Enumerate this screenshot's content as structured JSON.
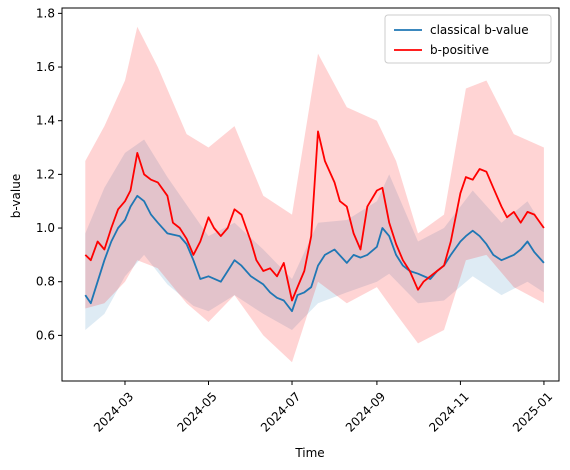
{
  "chart_data": {
    "type": "line",
    "title": "",
    "xlabel": "Time",
    "ylabel": "b-value",
    "xlim": [
      "2024-01-15",
      "2025-01-12"
    ],
    "ylim": [
      0.43,
      1.82
    ],
    "x_ticks": [
      "2024-03-01",
      "2024-05-01",
      "2024-07-01",
      "2024-09-01",
      "2024-11-01",
      "2025-01-01"
    ],
    "x_tick_labels": [
      "2024-03",
      "2024-05",
      "2024-07",
      "2024-09",
      "2024-11",
      "2025-01"
    ],
    "y_ticks": [
      0.6,
      0.8,
      1.0,
      1.2,
      1.4,
      1.6,
      1.8
    ],
    "y_tick_labels": [
      "0.6",
      "0.8",
      "1.0",
      "1.2",
      "1.4",
      "1.6",
      "1.8"
    ],
    "x_tick_rotation_deg": 45,
    "grid": false,
    "legend": {
      "position": "top-right"
    },
    "series": [
      {
        "name": "classical b-value",
        "color": "#1f77b4",
        "band_color": "#1f77b4",
        "points": [
          [
            "2024-02-01",
            0.75
          ],
          [
            "2024-02-05",
            0.72
          ],
          [
            "2024-02-10",
            0.8
          ],
          [
            "2024-02-15",
            0.88
          ],
          [
            "2024-02-20",
            0.95
          ],
          [
            "2024-02-25",
            1.0
          ],
          [
            "2024-03-01",
            1.03
          ],
          [
            "2024-03-05",
            1.08
          ],
          [
            "2024-03-10",
            1.12
          ],
          [
            "2024-03-15",
            1.1
          ],
          [
            "2024-03-20",
            1.05
          ],
          [
            "2024-03-25",
            1.02
          ],
          [
            "2024-04-01",
            0.98
          ],
          [
            "2024-04-10",
            0.97
          ],
          [
            "2024-04-15",
            0.94
          ],
          [
            "2024-04-20",
            0.88
          ],
          [
            "2024-04-25",
            0.81
          ],
          [
            "2024-05-01",
            0.82
          ],
          [
            "2024-05-10",
            0.8
          ],
          [
            "2024-05-15",
            0.84
          ],
          [
            "2024-05-20",
            0.88
          ],
          [
            "2024-05-25",
            0.86
          ],
          [
            "2024-06-01",
            0.82
          ],
          [
            "2024-06-10",
            0.79
          ],
          [
            "2024-06-15",
            0.76
          ],
          [
            "2024-06-20",
            0.74
          ],
          [
            "2024-06-25",
            0.73
          ],
          [
            "2024-07-01",
            0.69
          ],
          [
            "2024-07-05",
            0.75
          ],
          [
            "2024-07-10",
            0.76
          ],
          [
            "2024-07-15",
            0.78
          ],
          [
            "2024-07-20",
            0.86
          ],
          [
            "2024-07-25",
            0.9
          ],
          [
            "2024-08-01",
            0.92
          ],
          [
            "2024-08-10",
            0.87
          ],
          [
            "2024-08-15",
            0.9
          ],
          [
            "2024-08-20",
            0.89
          ],
          [
            "2024-08-25",
            0.9
          ],
          [
            "2024-09-01",
            0.93
          ],
          [
            "2024-09-05",
            1.0
          ],
          [
            "2024-09-10",
            0.97
          ],
          [
            "2024-09-15",
            0.9
          ],
          [
            "2024-09-20",
            0.86
          ],
          [
            "2024-09-25",
            0.84
          ],
          [
            "2024-10-01",
            0.83
          ],
          [
            "2024-10-10",
            0.81
          ],
          [
            "2024-10-15",
            0.84
          ],
          [
            "2024-10-20",
            0.86
          ],
          [
            "2024-10-25",
            0.9
          ],
          [
            "2024-11-01",
            0.95
          ],
          [
            "2024-11-05",
            0.97
          ],
          [
            "2024-11-10",
            0.99
          ],
          [
            "2024-11-15",
            0.97
          ],
          [
            "2024-11-20",
            0.94
          ],
          [
            "2024-11-25",
            0.9
          ],
          [
            "2024-12-01",
            0.88
          ],
          [
            "2024-12-10",
            0.9
          ],
          [
            "2024-12-15",
            0.92
          ],
          [
            "2024-12-20",
            0.95
          ],
          [
            "2024-12-25",
            0.91
          ],
          [
            "2025-01-01",
            0.87
          ]
        ],
        "band": [
          [
            "2024-02-01",
            0.62,
            0.98
          ],
          [
            "2024-02-15",
            0.68,
            1.15
          ],
          [
            "2024-03-01",
            0.82,
            1.28
          ],
          [
            "2024-03-15",
            0.9,
            1.33
          ],
          [
            "2024-04-01",
            0.79,
            1.19
          ],
          [
            "2024-04-20",
            0.71,
            1.05
          ],
          [
            "2024-05-01",
            0.69,
            0.97
          ],
          [
            "2024-05-20",
            0.75,
            1.02
          ],
          [
            "2024-06-10",
            0.68,
            0.92
          ],
          [
            "2024-07-01",
            0.62,
            0.81
          ],
          [
            "2024-07-20",
            0.72,
            1.02
          ],
          [
            "2024-08-10",
            0.76,
            1.03
          ],
          [
            "2024-09-01",
            0.8,
            1.1
          ],
          [
            "2024-09-10",
            0.83,
            1.2
          ],
          [
            "2024-10-01",
            0.72,
            0.95
          ],
          [
            "2024-10-20",
            0.73,
            1.0
          ],
          [
            "2024-11-10",
            0.82,
            1.14
          ],
          [
            "2024-12-01",
            0.75,
            1.02
          ],
          [
            "2024-12-20",
            0.8,
            1.1
          ],
          [
            "2025-01-01",
            0.76,
            1.0
          ]
        ]
      },
      {
        "name": "b-positive",
        "color": "#ff0000",
        "band_color": "#ff0000",
        "points": [
          [
            "2024-02-01",
            0.9
          ],
          [
            "2024-02-05",
            0.88
          ],
          [
            "2024-02-10",
            0.95
          ],
          [
            "2024-02-15",
            0.92
          ],
          [
            "2024-02-20",
            1.0
          ],
          [
            "2024-02-25",
            1.07
          ],
          [
            "2024-03-01",
            1.1
          ],
          [
            "2024-03-05",
            1.14
          ],
          [
            "2024-03-10",
            1.28
          ],
          [
            "2024-03-15",
            1.2
          ],
          [
            "2024-03-20",
            1.18
          ],
          [
            "2024-03-25",
            1.17
          ],
          [
            "2024-04-01",
            1.12
          ],
          [
            "2024-04-05",
            1.02
          ],
          [
            "2024-04-10",
            1.0
          ],
          [
            "2024-04-15",
            0.96
          ],
          [
            "2024-04-20",
            0.9
          ],
          [
            "2024-04-25",
            0.95
          ],
          [
            "2024-05-01",
            1.04
          ],
          [
            "2024-05-05",
            1.0
          ],
          [
            "2024-05-10",
            0.97
          ],
          [
            "2024-05-15",
            1.0
          ],
          [
            "2024-05-20",
            1.07
          ],
          [
            "2024-05-25",
            1.05
          ],
          [
            "2024-06-01",
            0.95
          ],
          [
            "2024-06-05",
            0.88
          ],
          [
            "2024-06-10",
            0.84
          ],
          [
            "2024-06-15",
            0.85
          ],
          [
            "2024-06-20",
            0.82
          ],
          [
            "2024-06-25",
            0.87
          ],
          [
            "2024-07-01",
            0.73
          ],
          [
            "2024-07-05",
            0.78
          ],
          [
            "2024-07-10",
            0.84
          ],
          [
            "2024-07-15",
            0.97
          ],
          [
            "2024-07-20",
            1.36
          ],
          [
            "2024-07-25",
            1.25
          ],
          [
            "2024-08-01",
            1.17
          ],
          [
            "2024-08-05",
            1.1
          ],
          [
            "2024-08-10",
            1.08
          ],
          [
            "2024-08-15",
            0.98
          ],
          [
            "2024-08-20",
            0.92
          ],
          [
            "2024-08-25",
            1.08
          ],
          [
            "2024-09-01",
            1.14
          ],
          [
            "2024-09-05",
            1.15
          ],
          [
            "2024-09-10",
            1.02
          ],
          [
            "2024-09-15",
            0.94
          ],
          [
            "2024-09-20",
            0.88
          ],
          [
            "2024-09-25",
            0.84
          ],
          [
            "2024-10-01",
            0.77
          ],
          [
            "2024-10-05",
            0.8
          ],
          [
            "2024-10-10",
            0.82
          ],
          [
            "2024-10-15",
            0.84
          ],
          [
            "2024-10-20",
            0.86
          ],
          [
            "2024-10-25",
            0.95
          ],
          [
            "2024-11-01",
            1.13
          ],
          [
            "2024-11-05",
            1.19
          ],
          [
            "2024-11-10",
            1.18
          ],
          [
            "2024-11-15",
            1.22
          ],
          [
            "2024-11-20",
            1.21
          ],
          [
            "2024-11-25",
            1.15
          ],
          [
            "2024-12-01",
            1.08
          ],
          [
            "2024-12-05",
            1.04
          ],
          [
            "2024-12-10",
            1.06
          ],
          [
            "2024-12-15",
            1.02
          ],
          [
            "2024-12-20",
            1.06
          ],
          [
            "2024-12-25",
            1.05
          ],
          [
            "2025-01-01",
            1.0
          ]
        ],
        "band": [
          [
            "2024-02-01",
            0.7,
            1.25
          ],
          [
            "2024-02-15",
            0.72,
            1.38
          ],
          [
            "2024-03-01",
            0.8,
            1.55
          ],
          [
            "2024-03-10",
            0.88,
            1.75
          ],
          [
            "2024-03-25",
            0.85,
            1.6
          ],
          [
            "2024-04-15",
            0.72,
            1.35
          ],
          [
            "2024-05-01",
            0.65,
            1.3
          ],
          [
            "2024-05-20",
            0.75,
            1.38
          ],
          [
            "2024-06-10",
            0.6,
            1.12
          ],
          [
            "2024-07-01",
            0.5,
            1.05
          ],
          [
            "2024-07-20",
            0.8,
            1.65
          ],
          [
            "2024-08-10",
            0.72,
            1.45
          ],
          [
            "2024-09-01",
            0.78,
            1.4
          ],
          [
            "2024-09-15",
            0.68,
            1.25
          ],
          [
            "2024-10-01",
            0.57,
            0.98
          ],
          [
            "2024-10-20",
            0.62,
            1.05
          ],
          [
            "2024-11-05",
            0.88,
            1.52
          ],
          [
            "2024-11-20",
            0.9,
            1.55
          ],
          [
            "2024-12-10",
            0.78,
            1.35
          ],
          [
            "2025-01-01",
            0.72,
            1.3
          ]
        ]
      }
    ]
  }
}
